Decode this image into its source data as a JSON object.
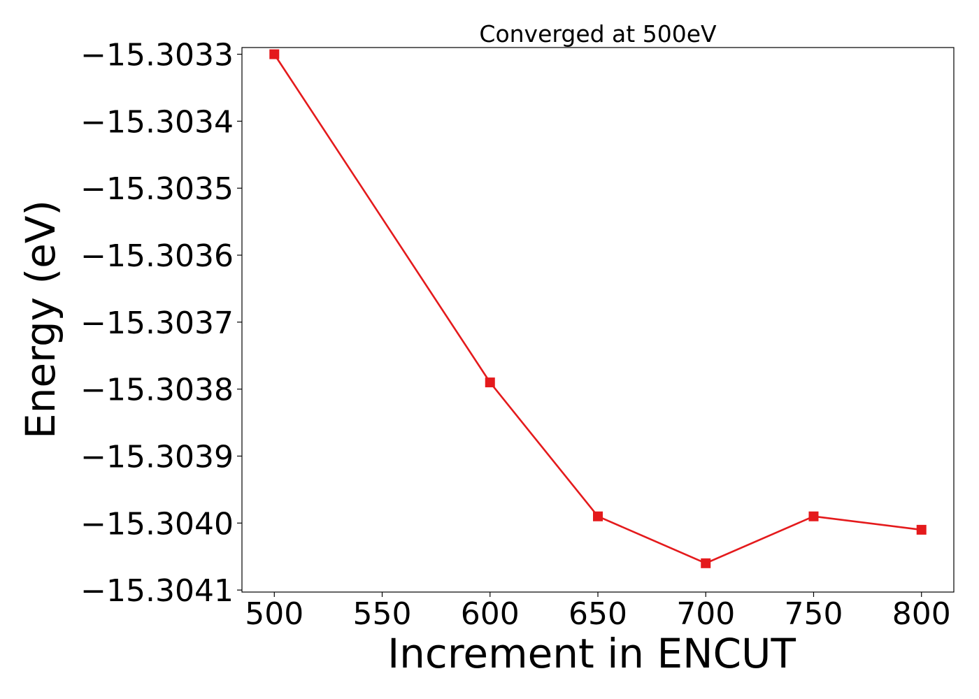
{
  "chart_data": {
    "type": "line",
    "title": "Converged at 500eV",
    "xlabel": "Increment in ENCUT",
    "ylabel": "Energy (eV)",
    "x": [
      500,
      600,
      650,
      700,
      750,
      800
    ],
    "series": [
      {
        "values": [
          -15.3033,
          -15.30379,
          -15.30399,
          -15.30406,
          -15.30399,
          -15.30401
        ],
        "color": "#e41a1c",
        "marker": "square"
      }
    ],
    "xticks": [
      500,
      550,
      600,
      650,
      700,
      750,
      800
    ],
    "xtick_labels": [
      "500",
      "550",
      "600",
      "650",
      "700",
      "750",
      "800"
    ],
    "yticks": [
      -15.3033,
      -15.3034,
      -15.3035,
      -15.3036,
      -15.3037,
      -15.3038,
      -15.3039,
      -15.304,
      -15.3041
    ],
    "ytick_labels": [
      "−15.3033",
      "−15.3034",
      "−15.3035",
      "−15.3036",
      "−15.3037",
      "−15.3038",
      "−15.3039",
      "−15.3040",
      "−15.3041"
    ],
    "xlim": [
      485,
      815
    ],
    "ylim": [
      -15.304103,
      -15.30329
    ],
    "grid": false,
    "legend": false
  }
}
